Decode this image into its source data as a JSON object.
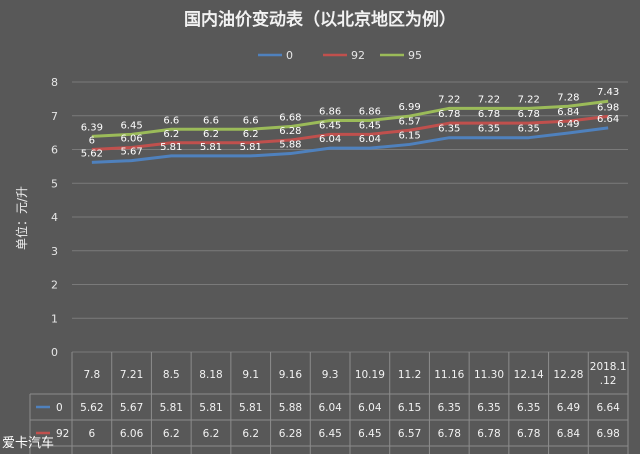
{
  "chart_data": {
    "type": "line",
    "title": "国内油价变动表（以北京地区为例）",
    "ylabel": "单位：元/升",
    "ylim": [
      0,
      8
    ],
    "yticks": [
      0,
      1,
      2,
      3,
      4,
      5,
      6,
      7,
      8
    ],
    "grid": true,
    "legend_position": "top",
    "categories": [
      "7.8",
      "7.21",
      "8.5",
      "8.18",
      "9.1",
      "9.16",
      "9.3",
      "10.19",
      "11.2",
      "11.16",
      "11.30",
      "12.14",
      "12.28",
      "2018.1.12"
    ],
    "series": [
      {
        "name": "0",
        "color": "#4f81bd",
        "values": [
          5.62,
          5.67,
          5.81,
          5.81,
          5.81,
          5.88,
          6.04,
          6.04,
          6.15,
          6.35,
          6.35,
          6.35,
          6.49,
          6.64
        ]
      },
      {
        "name": "92",
        "color": "#c0504d",
        "values": [
          6,
          6.06,
          6.2,
          6.2,
          6.2,
          6.28,
          6.45,
          6.45,
          6.57,
          6.78,
          6.78,
          6.78,
          6.84,
          6.98
        ]
      },
      {
        "name": "95",
        "color": "#9bbb59",
        "values": [
          6.39,
          6.45,
          6.6,
          6.6,
          6.6,
          6.68,
          6.86,
          6.86,
          6.99,
          7.22,
          7.22,
          7.22,
          7.28,
          7.43
        ]
      }
    ]
  },
  "watermark": "爱卡汽车"
}
